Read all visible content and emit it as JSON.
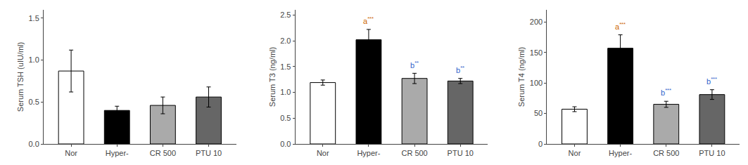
{
  "chart_data": [
    {
      "type": "bar",
      "y_label": "Serum TSH (uIU/ml)",
      "categories": [
        "Nor",
        "Hyper-",
        "CR 500",
        "PTU 10"
      ],
      "values": [
        0.87,
        0.4,
        0.46,
        0.56
      ],
      "errors": [
        0.25,
        0.05,
        0.1,
        0.12
      ],
      "colors": [
        "white",
        "black",
        "#aaaaaa",
        "#666666"
      ],
      "ylim": [
        0,
        1.6
      ],
      "yticks": [
        {
          "value": 0,
          "label": "0.0"
        },
        0.5,
        {
          "value": 1,
          "label": "1.0"
        },
        1.5
      ],
      "grid": false
    },
    {
      "type": "bar",
      "y_label": "Serum T3 (ng/ml)",
      "categories": [
        "Nor",
        "Hyper-",
        "CR 500",
        "PTU 10"
      ],
      "values": [
        1.19,
        2.02,
        1.27,
        1.22
      ],
      "errors": [
        0.05,
        0.2,
        0.1,
        0.05
      ],
      "colors": [
        "white",
        "black",
        "#aaaaaa",
        "#666666"
      ],
      "ylim": [
        0,
        2.6
      ],
      "yticks": [
        {
          "value": 0,
          "label": "0.0"
        },
        0.5,
        {
          "value": 1,
          "label": "1.0"
        },
        1.5,
        {
          "value": 2,
          "label": "2.0"
        },
        2.5
      ],
      "grid": false,
      "annotations": [
        {
          "category": "Hyper-",
          "text": "a",
          "superscript": "***",
          "color": "#cc6600"
        },
        {
          "category": "CR 500",
          "text": "b",
          "superscript": "**",
          "color": "#3366cc"
        },
        {
          "category": "PTU 10",
          "text": "b",
          "superscript": "**",
          "color": "#3366cc"
        }
      ]
    },
    {
      "type": "bar",
      "y_label": "Serum T4 (ng/ml)",
      "categories": [
        "Nor",
        "Hyper-",
        "CR 500",
        "PTU 10"
      ],
      "values": [
        57,
        157,
        65,
        81
      ],
      "errors": [
        4,
        22,
        5,
        8
      ],
      "colors": [
        "white",
        "black",
        "#aaaaaa",
        "#666666"
      ],
      "ylim": [
        0,
        220
      ],
      "yticks": [
        0,
        50,
        100,
        150,
        200
      ],
      "grid": false,
      "annotations": [
        {
          "category": "Hyper-",
          "text": "a",
          "superscript": "***",
          "color": "#cc6600"
        },
        {
          "category": "CR 500",
          "text": "b",
          "superscript": "***",
          "color": "#3366cc"
        },
        {
          "category": "PTU 10",
          "text": "b",
          "superscript": "***",
          "color": "#3366cc"
        }
      ]
    }
  ]
}
